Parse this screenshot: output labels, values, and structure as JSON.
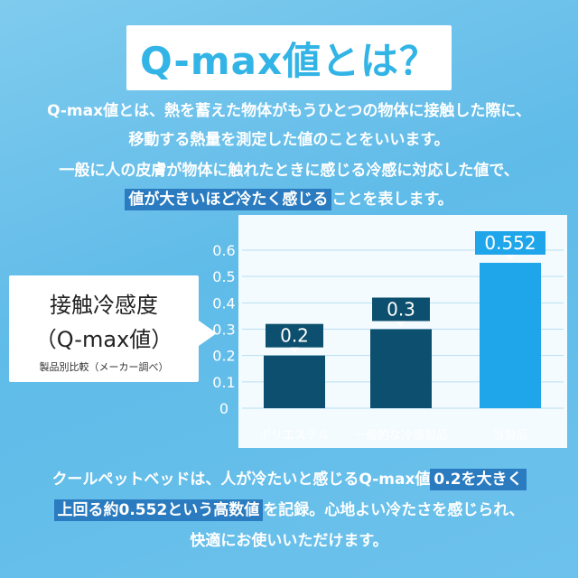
{
  "title": "Q-max値とは？",
  "intro": {
    "line1": "Q-max値とは、熱を蓄えた物体がもうひとつの物体に接触した際に、",
    "line2": "移動する熱量を測定した値のことをいいます。",
    "line3": "一般に人の皮膚が物体に触れたときに感じる冷感に対応した値で、",
    "line4_highlight": "値が大きいほど冷たく感じる",
    "line4_rest": "ことを表します。"
  },
  "callout": {
    "line1": "接触冷感度",
    "line2": "（Q-max値）",
    "line3": "製品別比較（メーカー調べ）"
  },
  "chart_data": {
    "type": "bar",
    "categories": [
      "ポリエステル",
      "一般的な冷感製品",
      "当製品"
    ],
    "values": [
      0.2,
      0.3,
      0.552
    ],
    "value_labels": [
      "0.2",
      "0.3",
      "0.552"
    ],
    "ylim": [
      0,
      0.6
    ],
    "yticks": [
      "0",
      "0.1",
      "0.2",
      "0.3",
      "0.4",
      "0.5",
      "0.6"
    ],
    "grid": true,
    "colors": [
      "#0d4f6e",
      "#0d4f6e",
      "#1fa6ea"
    ]
  },
  "outro": {
    "line1_pre": "クールペットベッドは、人が冷たいと感じるQ-max値",
    "line1_highlight": "0.2を大きく",
    "line2_highlight1": "上回る約0.552という高数値",
    "line2_rest": "を記録。心地よい冷たさを感じられ、",
    "line3": "快適にお使いいただけます。"
  }
}
